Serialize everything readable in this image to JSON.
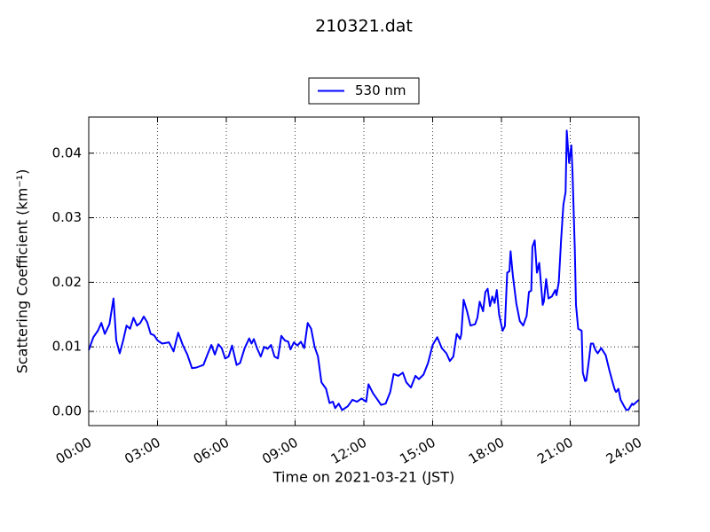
{
  "chart_data": {
    "type": "line",
    "title": "210321.dat",
    "xlabel": "Time on 2021-03-21 (JST)",
    "ylabel": "Scattering Coefficient (km⁻¹)",
    "legend": "upper center",
    "grid": true,
    "xlim": [
      0,
      24
    ],
    "xticks": [
      {
        "value": 0,
        "label": "00:00"
      },
      {
        "value": 3,
        "label": "03:00"
      },
      {
        "value": 6,
        "label": "06:00"
      },
      {
        "value": 9,
        "label": "09:00"
      },
      {
        "value": 12,
        "label": "12:00"
      },
      {
        "value": 15,
        "label": "15:00"
      },
      {
        "value": 18,
        "label": "18:00"
      },
      {
        "value": 21,
        "label": "21:00"
      },
      {
        "value": 24,
        "label": "24:00"
      }
    ],
    "ylim": [
      -0.0022,
      0.0456
    ],
    "yticks": [
      {
        "value": 0,
        "label": "0.00"
      },
      {
        "value": 0.01,
        "label": "0.01"
      },
      {
        "value": 0.02,
        "label": "0.02"
      },
      {
        "value": 0.03,
        "label": "0.03"
      },
      {
        "value": 0.04,
        "label": "0.04"
      }
    ],
    "x": [
      0.0,
      0.2,
      0.4,
      0.55,
      0.7,
      0.9,
      1.08,
      1.2,
      1.35,
      1.5,
      1.65,
      1.8,
      1.95,
      2.1,
      2.25,
      2.4,
      2.55,
      2.7,
      2.85,
      3.0,
      3.2,
      3.5,
      3.7,
      3.9,
      4.1,
      4.3,
      4.5,
      4.7,
      5.0,
      5.2,
      5.35,
      5.5,
      5.65,
      5.8,
      5.95,
      6.1,
      6.25,
      6.45,
      6.6,
      6.8,
      7.0,
      7.1,
      7.2,
      7.35,
      7.5,
      7.65,
      7.8,
      7.95,
      8.1,
      8.25,
      8.4,
      8.55,
      8.7,
      8.8,
      8.95,
      9.1,
      9.25,
      9.4,
      9.55,
      9.7,
      9.85,
      10.0,
      10.15,
      10.35,
      10.5,
      10.65,
      10.75,
      10.9,
      11.05,
      11.3,
      11.5,
      11.7,
      11.9,
      12.1,
      12.2,
      12.4,
      12.6,
      12.75,
      12.95,
      13.15,
      13.3,
      13.5,
      13.7,
      13.85,
      14.05,
      14.25,
      14.4,
      14.6,
      14.8,
      15.0,
      15.2,
      15.4,
      15.6,
      15.75,
      15.9,
      16.05,
      16.2,
      16.25,
      16.35,
      16.5,
      16.65,
      16.85,
      16.95,
      17.05,
      17.2,
      17.3,
      17.4,
      17.5,
      17.6,
      17.7,
      17.8,
      17.9,
      18.05,
      18.15,
      18.25,
      18.35,
      18.4,
      18.5,
      18.65,
      18.8,
      18.95,
      19.1,
      19.2,
      19.3,
      19.35,
      19.45,
      19.55,
      19.65,
      19.8,
      19.85,
      19.95,
      20.05,
      20.2,
      20.35,
      20.4,
      20.5,
      20.6,
      20.7,
      20.8,
      20.85,
      20.95,
      21.05,
      21.1,
      21.2,
      21.25,
      21.35,
      21.5,
      21.55,
      21.65,
      21.7,
      21.8,
      21.9,
      22.0,
      22.1,
      22.2,
      22.35,
      22.55,
      22.7,
      22.85,
      22.95,
      23.0,
      23.1,
      23.2,
      23.35,
      23.45,
      23.55,
      23.7,
      23.75,
      23.9,
      24.0
    ],
    "series": [
      {
        "name": "530 nm",
        "color": "#0000ff",
        "values": [
          0.0095,
          0.0115,
          0.0125,
          0.0137,
          0.012,
          0.0135,
          0.0175,
          0.011,
          0.009,
          0.011,
          0.0133,
          0.0128,
          0.0145,
          0.0133,
          0.0137,
          0.0147,
          0.0138,
          0.012,
          0.0118,
          0.011,
          0.0105,
          0.0107,
          0.0093,
          0.0122,
          0.0103,
          0.0088,
          0.0067,
          0.0068,
          0.0072,
          0.009,
          0.0103,
          0.0088,
          0.0104,
          0.0098,
          0.0082,
          0.0085,
          0.0102,
          0.0072,
          0.0075,
          0.0098,
          0.0113,
          0.0105,
          0.0112,
          0.0097,
          0.0085,
          0.01,
          0.0097,
          0.0103,
          0.0085,
          0.0082,
          0.0117,
          0.011,
          0.0108,
          0.0096,
          0.0107,
          0.0102,
          0.0108,
          0.0098,
          0.0137,
          0.0128,
          0.01,
          0.0085,
          0.0045,
          0.0035,
          0.0013,
          0.0015,
          0.0005,
          0.0012,
          0.0002,
          0.0008,
          0.0018,
          0.0015,
          0.002,
          0.0015,
          0.0042,
          0.0028,
          0.0018,
          0.001,
          0.0012,
          0.003,
          0.0058,
          0.0055,
          0.006,
          0.0045,
          0.0037,
          0.0055,
          0.005,
          0.0057,
          0.0075,
          0.0103,
          0.0115,
          0.0098,
          0.009,
          0.0078,
          0.0085,
          0.012,
          0.0112,
          0.012,
          0.0173,
          0.0155,
          0.0133,
          0.0135,
          0.0145,
          0.017,
          0.0155,
          0.0185,
          0.019,
          0.0163,
          0.0178,
          0.0168,
          0.0188,
          0.015,
          0.0125,
          0.0132,
          0.0215,
          0.0217,
          0.0248,
          0.021,
          0.0167,
          0.014,
          0.0133,
          0.0148,
          0.0185,
          0.0187,
          0.0255,
          0.0265,
          0.0215,
          0.023,
          0.0165,
          0.017,
          0.0205,
          0.0175,
          0.0178,
          0.0188,
          0.018,
          0.02,
          0.0265,
          0.032,
          0.034,
          0.0435,
          0.0385,
          0.0412,
          0.037,
          0.025,
          0.0165,
          0.0128,
          0.0125,
          0.006,
          0.0047,
          0.0048,
          0.0075,
          0.0105,
          0.0105,
          0.0095,
          0.009,
          0.0098,
          0.0087,
          0.0065,
          0.0045,
          0.0033,
          0.003,
          0.0035,
          0.0018,
          0.0008,
          0.0002,
          0.0003,
          0.0012,
          0.001,
          0.0015,
          0.0018
        ]
      }
    ]
  }
}
